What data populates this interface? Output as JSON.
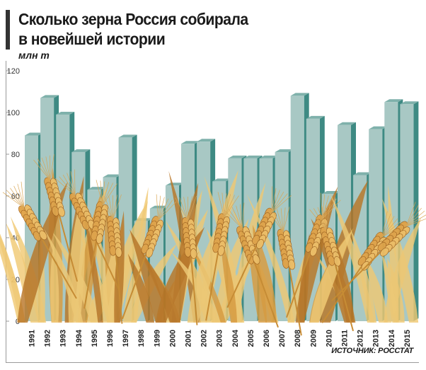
{
  "header": {
    "title_line1": "Сколько зерна Россия собирала",
    "title_line2": "в новейшей истории",
    "unit_label": "млн т"
  },
  "footer": {
    "source": "ИСТОЧНИК: РОССТАТ"
  },
  "colors": {
    "bar_front": "#a8c8c4",
    "bar_side": "#3e8a83",
    "bar_top": "#7fb1ab",
    "wheat_light": "#f0c872",
    "wheat_dark": "#b87424"
  },
  "chart_data": {
    "type": "bar",
    "title": "Сколько зерна Россия собирала в новейшей истории",
    "xlabel": "",
    "ylabel": "млн т",
    "ylim": [
      0,
      120
    ],
    "yticks": [
      0,
      20,
      40,
      60,
      80,
      100,
      120
    ],
    "grid": false,
    "categories": [
      "1991",
      "1992",
      "1993",
      "1994",
      "1995",
      "1996",
      "1997",
      "1998",
      "1999",
      "2000",
      "2001",
      "2002",
      "2003",
      "2004",
      "2005",
      "2006",
      "2007",
      "2008",
      "2009",
      "2010",
      "2011",
      "2012",
      "2013",
      "2014",
      "2015"
    ],
    "values": [
      89,
      107,
      99,
      81,
      63,
      69,
      88,
      48,
      54,
      65,
      85,
      86,
      67,
      78,
      78,
      78,
      81,
      108,
      97,
      61,
      94,
      70,
      92,
      105,
      104
    ]
  }
}
